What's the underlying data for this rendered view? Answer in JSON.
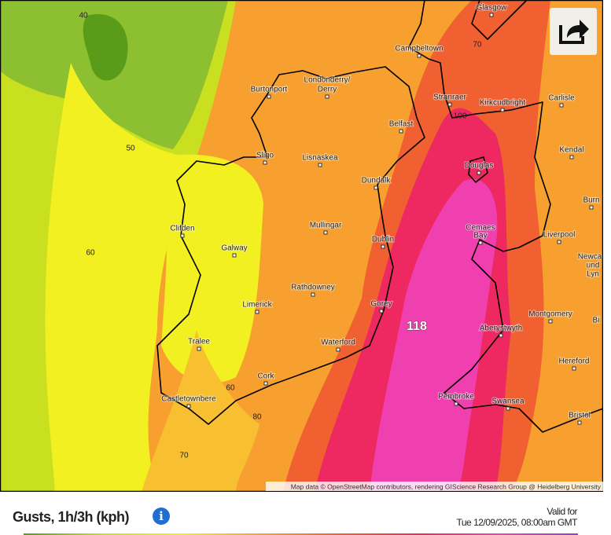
{
  "map": {
    "places": [
      "Glasgow",
      "Campbeltown",
      "Carlisle",
      "Stranraer",
      "Kirkcudbright",
      "Londonderry/",
      "Derry",
      "Burtonport",
      "Belfast",
      "Kendal",
      "Sligo",
      "Lisnaskea",
      "Douglas",
      "Dundalk",
      "Burn",
      "Mullingar",
      "Cemaes",
      "Bay",
      "Liverpool",
      "Clifden",
      "Galway",
      "Dublin",
      "Newca",
      "und",
      "Lyn",
      "Rathdowney",
      "Limerick",
      "Gorey",
      "Montgomery",
      "Bi",
      "Aberystwyth",
      "Waterford",
      "Tralee",
      "Hereford",
      "Cork",
      "Castletownbere",
      "Pembroke",
      "Swansea",
      "Bristol"
    ],
    "contours": [
      40,
      50,
      60,
      60,
      70,
      70,
      80,
      100,
      118
    ],
    "attribution": "Map data © OpenStreetMap contributors, rendering GIScience Research Group @ Heidelberg University"
  },
  "footer": {
    "title": "Gusts, 1h/3h (kph)",
    "valid_label": "Valid for",
    "valid_time": "Tue 12/09/2025, 08:00am GMT"
  }
}
